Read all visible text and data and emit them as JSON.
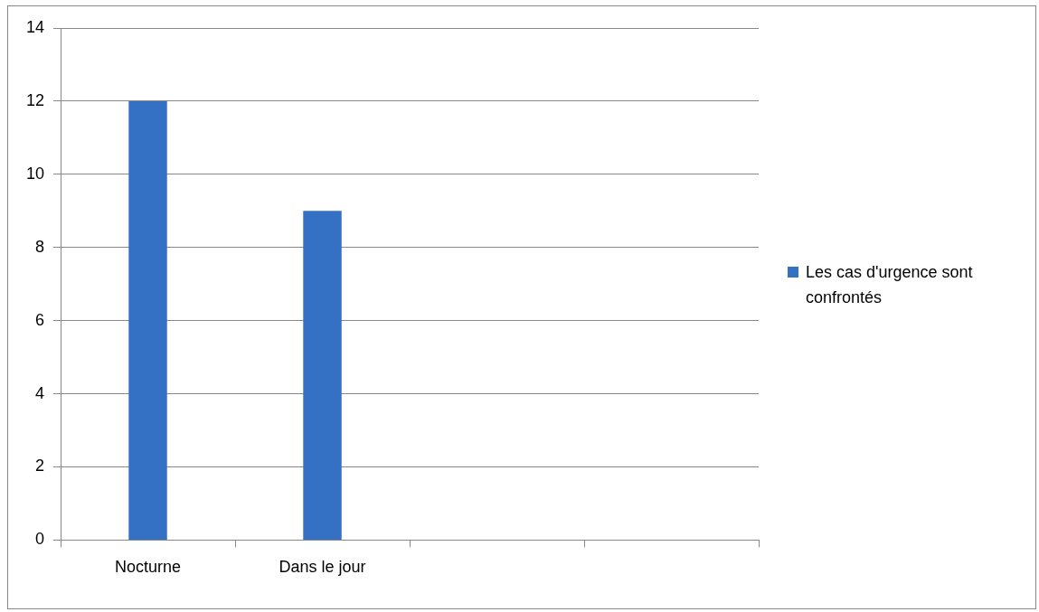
{
  "chart_data": {
    "type": "bar",
    "categories": [
      "Nocturne",
      "Dans le jour",
      null,
      null
    ],
    "series": [
      {
        "name": "Les cas d'urgence sont confrontés",
        "color": "#3471c4",
        "values": [
          12,
          9,
          null,
          null
        ]
      }
    ],
    "ylim": [
      0,
      14
    ],
    "yticks": [
      0,
      2,
      4,
      6,
      8,
      10,
      12,
      14
    ],
    "grid": "y",
    "legend": "right"
  }
}
